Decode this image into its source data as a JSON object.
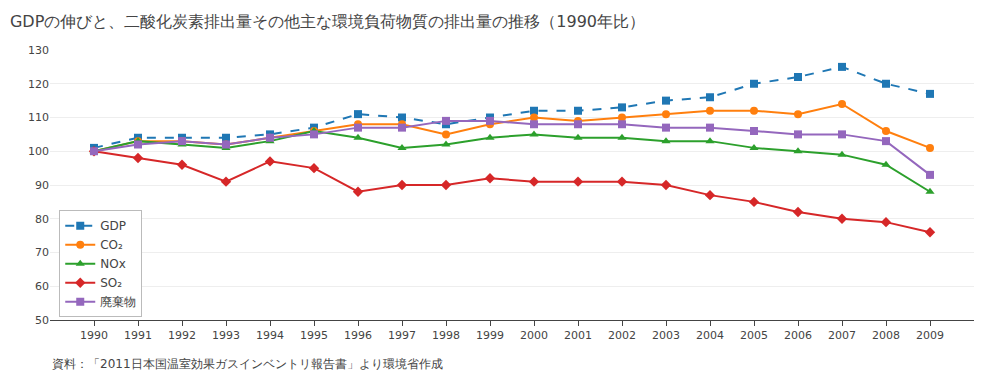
{
  "chart_data": {
    "type": "line",
    "title": "GDPの伸びと、二酸化炭素排出量その他主な環境負荷物質の排出量の推移（1990年比）",
    "annotations": [
      "資料：「2011日本国温室効果ガスインベントリ報告書」より環境省作成"
    ],
    "x": [
      1990,
      1991,
      1992,
      1993,
      1994,
      1995,
      1996,
      1997,
      1998,
      1999,
      2000,
      2001,
      2002,
      2003,
      2004,
      2005,
      2006,
      2007,
      2008,
      2009
    ],
    "series": [
      {
        "name": "GDP",
        "marker": "square",
        "line_style": "dashed",
        "values": [
          101,
          104,
          104,
          104,
          105,
          107,
          111,
          110,
          108,
          110,
          112,
          112,
          113,
          115,
          116,
          120,
          122,
          125,
          120,
          117
        ]
      },
      {
        "name": "CO₂",
        "marker": "circle",
        "line_style": "solid",
        "values": [
          100,
          103,
          103,
          102,
          104,
          106,
          108,
          108,
          105,
          108,
          110,
          109,
          110,
          111,
          112,
          112,
          111,
          114,
          106,
          101
        ]
      },
      {
        "name": "NOx",
        "marker": "triangle",
        "line_style": "solid",
        "values": [
          100,
          103,
          102,
          101,
          103,
          106,
          104,
          101,
          102,
          104,
          105,
          104,
          104,
          103,
          103,
          101,
          100,
          99,
          96,
          88
        ]
      },
      {
        "name": "SO₂",
        "marker": "diamond",
        "line_style": "solid",
        "values": [
          100,
          98,
          96,
          91,
          97,
          95,
          88,
          90,
          90,
          92,
          91,
          91,
          91,
          90,
          87,
          85,
          82,
          80,
          79,
          76
        ]
      },
      {
        "name": "廃棄物",
        "marker": "square",
        "line_style": "solid",
        "values": [
          100,
          102,
          103,
          102,
          104,
          105,
          107,
          107,
          109,
          109,
          108,
          108,
          108,
          107,
          107,
          106,
          105,
          105,
          103,
          93
        ]
      }
    ],
    "xlim": [
      1989,
      2010
    ],
    "xticks": [
      1990,
      1991,
      1992,
      1993,
      1994,
      1995,
      1996,
      1997,
      1998,
      1999,
      2000,
      2001,
      2002,
      2003,
      2004,
      2005,
      2006,
      2007,
      2008,
      2009
    ],
    "ylim": [
      50,
      130
    ],
    "yticks": [
      50,
      60,
      70,
      80,
      90,
      100,
      110,
      120,
      130
    ],
    "grid": true,
    "legend": "lower left"
  }
}
